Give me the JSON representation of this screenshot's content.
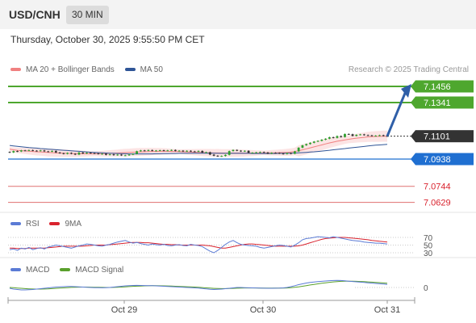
{
  "header": {
    "symbol": "USD/CNH",
    "timeframe": "30 MIN"
  },
  "datetime": "Thursday, October 30, 2025 9:55:50 PM CET",
  "price_panel": {
    "legend": [
      {
        "label": "MA 20 + Bollinger Bands",
        "color": "#f08080"
      },
      {
        "label": "MA 50",
        "color": "#2f5597"
      }
    ],
    "credit": "Research © 2025 Trading Central"
  },
  "rsi_panel": {
    "legend": [
      {
        "label": "RSI",
        "color": "#5b7bd5"
      },
      {
        "label": "9MA",
        "color": "#d9232e"
      }
    ]
  },
  "macd_panel": {
    "legend": [
      {
        "label": "MACD",
        "color": "#5b7bd5"
      },
      {
        "label": "MACD Signal",
        "color": "#5aa02c"
      }
    ]
  },
  "colors": {
    "bull": "#2e9e2e",
    "bear": "#333333",
    "green_level": "#4ea72e",
    "blue_level": "#1f6fd1",
    "red_level": "#e07070",
    "arrow": "#2f5fa8"
  },
  "chart_data": [
    {
      "type": "line",
      "x_tick_labels": [
        "Oct 29",
        "Oct 30",
        "Oct 31"
      ],
      "ylim": [
        7.05,
        7.16
      ],
      "levels": [
        {
          "value": 7.1456,
          "label": "7.1456",
          "kind": "resistance"
        },
        {
          "value": 7.1341,
          "label": "7.1341",
          "kind": "resistance"
        },
        {
          "value": 7.1101,
          "label": "7.1101",
          "kind": "current"
        },
        {
          "value": 7.0938,
          "label": "7.0938",
          "kind": "pivot"
        },
        {
          "value": 7.0744,
          "label": "7.0744",
          "kind": "support"
        },
        {
          "value": 7.0629,
          "label": "7.0629",
          "kind": "support"
        }
      ],
      "series": [
        {
          "name": "Price",
          "values": [
            7.0985,
            7.0995,
            7.0992,
            7.1,
            7.0998,
            7.1002,
            7.0998,
            7.0996,
            7.1,
            7.0993,
            7.0991,
            7.0996,
            7.0985,
            7.098,
            7.0975,
            7.0982,
            7.0976,
            7.097,
            7.0985,
            7.0978,
            7.0983,
            7.098,
            7.0979,
            7.0974,
            7.0976,
            7.0968,
            7.0972,
            7.0966,
            7.097,
            7.0964,
            7.0965,
            7.097,
            7.0975,
            7.0994,
            7.1,
            7.0998,
            7.1002,
            7.0997,
            7.0999,
            7.1001,
            7.0998,
            7.1,
            7.1003,
            7.0996,
            7.0998,
            7.0993,
            7.0997,
            7.0993,
            7.0992,
            7.0996,
            7.0985,
            7.0987,
            7.097,
            7.0962,
            7.0958,
            7.096,
            7.0968,
            7.0995,
            7.1003,
            7.0998,
            7.0993,
            7.0997,
            7.0983,
            7.0984,
            7.0986,
            7.0988,
            7.0985,
            7.0977,
            7.0983,
            7.0982,
            7.0978,
            7.0974,
            7.0981,
            7.0976,
            7.0993,
            7.1019,
            7.1036,
            7.1045,
            7.1054,
            7.1063,
            7.1068,
            7.1076,
            7.1083,
            7.1094,
            7.1089,
            7.1102,
            7.1095,
            7.1117,
            7.1115,
            7.1103,
            7.1111,
            7.1114,
            7.1109,
            7.1107,
            7.1104,
            7.1105,
            7.1108,
            7.1103,
            7.1101
          ]
        },
        {
          "name": "MA 20",
          "values": [
            7.1008,
            7.1004,
            7.1,
            7.0998,
            7.0996,
            7.0994,
            7.0992,
            7.099,
            7.0989,
            7.0987,
            7.0985,
            7.0984,
            7.0982,
            7.0981,
            7.098,
            7.0979,
            7.0978,
            7.0977,
            7.0977,
            7.0976,
            7.0976,
            7.0976,
            7.0976,
            7.0976,
            7.0977,
            7.0978,
            7.0979,
            7.098,
            7.0981,
            7.0983,
            7.0984,
            7.0985,
            7.0987,
            7.0988,
            7.0989,
            7.099,
            7.0991,
            7.0992,
            7.0992,
            7.0993,
            7.0993,
            7.0993,
            7.0992,
            7.0992,
            7.0991,
            7.099,
            7.0989,
            7.0988,
            7.0987,
            7.0986,
            7.0985,
            7.0984,
            7.0983,
            7.0982,
            7.0982,
            7.0981,
            7.0981,
            7.0981,
            7.0981,
            7.0981,
            7.0981,
            7.0981,
            7.0981,
            7.0981,
            7.0981,
            7.0982,
            7.0982,
            7.0982,
            7.0983,
            7.0983,
            7.0984,
            7.0985,
            7.0986,
            7.0988,
            7.0992,
            7.0997,
            7.1004,
            7.1011,
            7.1018,
            7.1025,
            7.1032,
            7.1039,
            7.1046,
            7.1053,
            7.1059,
            7.1065,
            7.107,
            7.1075,
            7.1079,
            7.1083,
            7.1087,
            7.109,
            7.1093,
            7.1096,
            7.1098,
            7.1099,
            7.11,
            7.1101,
            7.1101
          ]
        },
        {
          "name": "MA 50",
          "values": [
            7.1035,
            7.1032,
            7.1029,
            7.1026,
            7.1023,
            7.102,
            7.1018,
            7.1016,
            7.1013,
            7.1011,
            7.1009,
            7.1007,
            7.1005,
            7.1003,
            7.1001,
            7.0999,
            7.0997,
            7.0995,
            7.0993,
            7.0991,
            7.0989,
            7.0987,
            7.0986,
            7.0984,
            7.0983,
            7.0981,
            7.098,
            7.0979,
            7.0978,
            7.0977,
            7.0976,
            7.0975,
            7.0975,
            7.0975,
            7.0975,
            7.0975,
            7.0975,
            7.0975,
            7.0976,
            7.0976,
            7.0977,
            7.0977,
            7.0978,
            7.0978,
            7.0979,
            7.0979,
            7.0979,
            7.098,
            7.098,
            7.098,
            7.098,
            7.098,
            7.098,
            7.098,
            7.0979,
            7.0979,
            7.0979,
            7.0979,
            7.0979,
            7.0979,
            7.0979,
            7.0979,
            7.0979,
            7.0978,
            7.0978,
            7.0978,
            7.0978,
            7.0978,
            7.0978,
            7.0978,
            7.0979,
            7.0979,
            7.098,
            7.098,
            7.0981,
            7.0983,
            7.0984,
            7.0986,
            7.0988,
            7.099,
            7.0992,
            7.0995,
            7.0998,
            7.1001,
            7.1004,
            7.1007,
            7.101,
            7.1013,
            7.1016,
            7.1019,
            7.1022,
            7.1025,
            7.1028,
            7.1031,
            7.1034,
            7.1037,
            7.1039,
            7.1041,
            7.1043
          ]
        }
      ],
      "projection": {
        "from": 7.1101,
        "to": 7.1456
      }
    },
    {
      "type": "line",
      "y_tick_labels": [
        "70",
        "50",
        "30"
      ],
      "ylim": [
        20,
        80
      ],
      "series": [
        {
          "name": "RSI",
          "values": [
            38,
            40,
            36,
            42,
            40,
            44,
            38,
            41,
            43,
            40,
            45,
            47,
            50,
            48,
            46,
            44,
            42,
            45,
            48,
            50,
            53,
            52,
            50,
            48,
            47,
            50,
            52,
            55,
            58,
            60,
            62,
            58,
            55,
            57,
            54,
            52,
            50,
            53,
            51,
            50,
            52,
            49,
            48,
            50,
            51,
            49,
            48,
            52,
            50,
            49,
            46,
            40,
            34,
            30,
            36,
            44,
            52,
            58,
            62,
            56,
            52,
            50,
            49,
            48,
            47,
            44,
            42,
            44,
            46,
            48,
            50,
            49,
            47,
            45,
            50,
            56,
            64,
            67,
            68,
            70,
            72,
            71,
            70,
            69,
            72,
            70,
            68,
            66,
            64,
            62,
            61,
            60,
            58,
            57,
            56,
            55,
            55,
            54,
            53
          ]
        },
        {
          "name": "9MA",
          "values": [
            42,
            42,
            41,
            41,
            41,
            42,
            42,
            42,
            42,
            42,
            43,
            44,
            45,
            46,
            47,
            47,
            47,
            47,
            47,
            47,
            48,
            49,
            50,
            50,
            50,
            50,
            51,
            52,
            53,
            54,
            55,
            56,
            57,
            57,
            57,
            56,
            56,
            55,
            54,
            53,
            52,
            52,
            51,
            51,
            50,
            50,
            50,
            50,
            50,
            50,
            50,
            49,
            48,
            46,
            44,
            42,
            42,
            44,
            46,
            48,
            50,
            52,
            53,
            53,
            52,
            51,
            50,
            49,
            48,
            47,
            47,
            47,
            47,
            47,
            47,
            48,
            50,
            53,
            56,
            59,
            62,
            65,
            67,
            68,
            69,
            70,
            70,
            70,
            69,
            68,
            67,
            66,
            65,
            64,
            62,
            61,
            60,
            59,
            58
          ]
        }
      ]
    },
    {
      "type": "line",
      "y_tick_labels": [
        "0"
      ],
      "ylim": [
        -1.2,
        1.4
      ],
      "series": [
        {
          "name": "MACD",
          "values": [
            -0.1,
            -0.2,
            -0.25,
            -0.3,
            -0.3,
            -0.28,
            -0.25,
            -0.2,
            -0.15,
            -0.1,
            -0.05,
            0,
            0.05,
            0.08,
            0.1,
            0.12,
            0.12,
            0.1,
            0.08,
            0.05,
            0.02,
            0,
            -0.02,
            -0.03,
            -0.04,
            -0.02,
            0,
            0.05,
            0.1,
            0.15,
            0.2,
            0.22,
            0.25,
            0.26,
            0.25,
            0.24,
            0.23,
            0.22,
            0.2,
            0.18,
            0.15,
            0.12,
            0.1,
            0.08,
            0.05,
            0.02,
            0,
            -0.02,
            -0.05,
            -0.08,
            -0.12,
            -0.18,
            -0.22,
            -0.25,
            -0.22,
            -0.2,
            -0.15,
            -0.1,
            -0.05,
            0,
            0,
            -0.02,
            -0.04,
            -0.05,
            -0.06,
            -0.08,
            -0.09,
            -0.1,
            -0.1,
            -0.09,
            -0.08,
            -0.05,
            0,
            0.1,
            0.22,
            0.35,
            0.45,
            0.55,
            0.62,
            0.68,
            0.72,
            0.76,
            0.8,
            0.84,
            0.86,
            0.88,
            0.86,
            0.82,
            0.78,
            0.74,
            0.7,
            0.66,
            0.62,
            0.58,
            0.54,
            0.5,
            0.46,
            0.42,
            0.38
          ]
        },
        {
          "name": "MACD Signal",
          "values": [
            0,
            -0.03,
            -0.07,
            -0.1,
            -0.14,
            -0.17,
            -0.19,
            -0.2,
            -0.2,
            -0.19,
            -0.17,
            -0.14,
            -0.11,
            -0.08,
            -0.05,
            -0.02,
            0.01,
            0.03,
            0.04,
            0.05,
            0.05,
            0.04,
            0.03,
            0.02,
            0.01,
            0,
            0,
            0.01,
            0.03,
            0.05,
            0.08,
            0.11,
            0.14,
            0.16,
            0.18,
            0.2,
            0.21,
            0.22,
            0.22,
            0.21,
            0.2,
            0.19,
            0.17,
            0.15,
            0.13,
            0.11,
            0.09,
            0.07,
            0.05,
            0.02,
            -0.01,
            -0.05,
            -0.08,
            -0.11,
            -0.13,
            -0.14,
            -0.14,
            -0.13,
            -0.11,
            -0.09,
            -0.07,
            -0.06,
            -0.06,
            -0.06,
            -0.06,
            -0.07,
            -0.07,
            -0.08,
            -0.08,
            -0.08,
            -0.08,
            -0.08,
            -0.06,
            -0.03,
            0.02,
            0.08,
            0.15,
            0.23,
            0.31,
            0.38,
            0.45,
            0.52,
            0.58,
            0.64,
            0.69,
            0.73,
            0.76,
            0.78,
            0.78,
            0.77,
            0.76,
            0.74,
            0.72,
            0.69,
            0.66,
            0.63,
            0.6,
            0.56,
            0.52
          ]
        }
      ]
    }
  ]
}
